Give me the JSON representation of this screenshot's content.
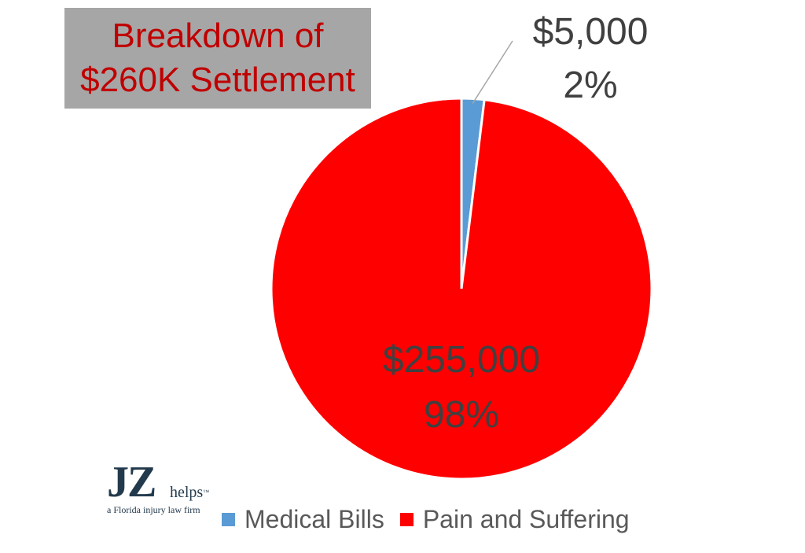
{
  "chart_data": {
    "type": "pie",
    "title": "Breakdown of $260K Settlement",
    "title_lines": [
      "Breakdown of",
      "$260K Settlement"
    ],
    "categories": [
      "Medical Bills",
      "Pain and Suffering"
    ],
    "values": [
      5000,
      255000
    ],
    "percentages": [
      2,
      98
    ],
    "value_labels": [
      "$5,000",
      "$255,000"
    ],
    "percent_labels": [
      "2%",
      "98%"
    ],
    "colors": [
      "#5b9bd5",
      "#ff0000"
    ],
    "legend_position": "bottom"
  },
  "colors": {
    "title_text": "#c00000",
    "title_background": "#a6a6a6",
    "label_text": "#404040",
    "legend_text": "#595959",
    "logo": "#233a4d"
  },
  "logo": {
    "mark": "JZ",
    "word": "helps",
    "trademark": "™",
    "tagline": "a Florida injury law firm"
  }
}
